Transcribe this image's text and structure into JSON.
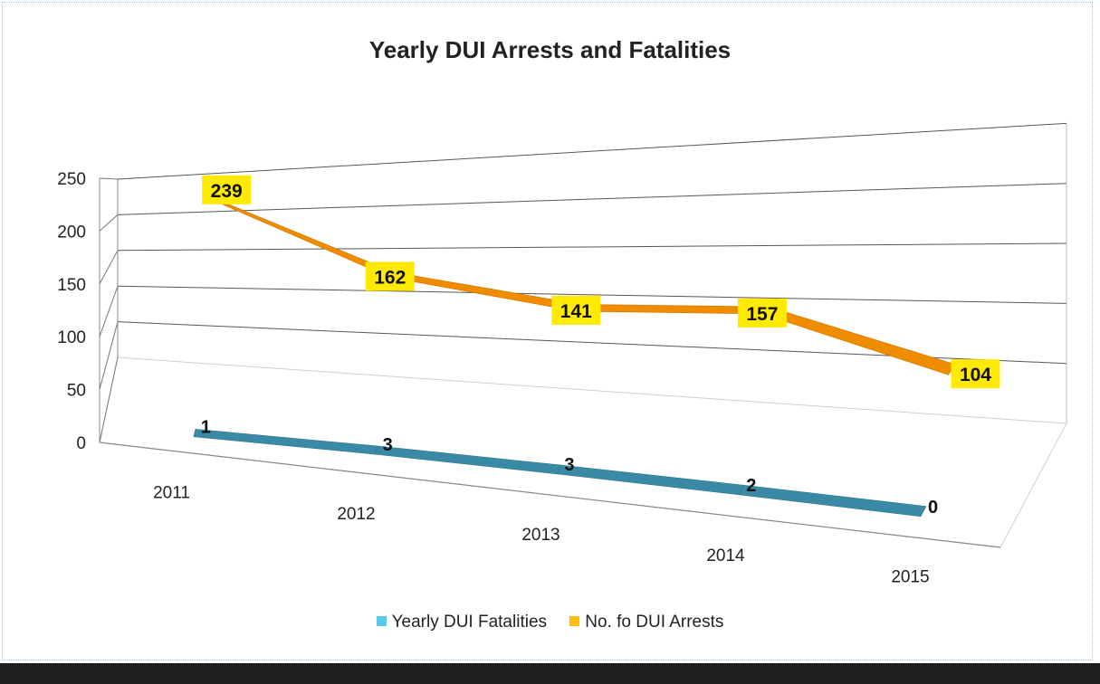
{
  "chart_data": {
    "type": "line",
    "title": "Yearly DUI Arrests and Fatalities",
    "categories": [
      "2011",
      "2012",
      "2013",
      "2014",
      "2015"
    ],
    "yticks": [
      "0",
      "50",
      "100",
      "150",
      "200",
      "250"
    ],
    "ylim": [
      0,
      250
    ],
    "grid": true,
    "legend_position": "bottom",
    "series": [
      {
        "name": "Yearly DUI Fatalities",
        "values": [
          1,
          3,
          3,
          2,
          0
        ],
        "color": "#3a8aa6"
      },
      {
        "name": "No. fo DUI Arrests",
        "values": [
          239,
          162,
          141,
          157,
          104
        ],
        "color": "#f08c00",
        "label_bg": "#ffea00"
      }
    ]
  }
}
